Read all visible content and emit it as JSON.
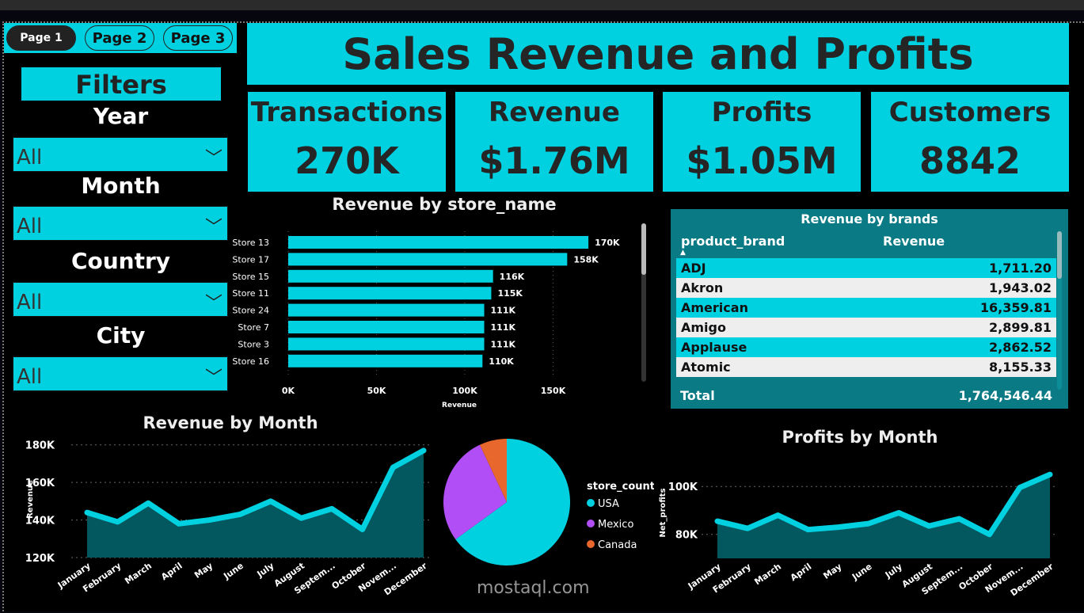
{
  "nav": {
    "pages": [
      "Page 1",
      "Page 2",
      "Page 3"
    ],
    "active": 0
  },
  "title": "Sales Revenue and Profits",
  "filters": {
    "heading": "Filters",
    "items": [
      {
        "label": "Year",
        "value": "All"
      },
      {
        "label": "Month",
        "value": "All"
      },
      {
        "label": "Country",
        "value": "All"
      },
      {
        "label": "City",
        "value": "All"
      }
    ]
  },
  "kpis": [
    {
      "label": "Transactions",
      "value": "270K"
    },
    {
      "label": "Revenue",
      "value": "$1.76M"
    },
    {
      "label": "Profits",
      "value": "$1.05M"
    },
    {
      "label": "Customers",
      "value": "8842"
    }
  ],
  "colors": {
    "accent": "#00d1e0",
    "area": "#02585e",
    "table": "#0a7a85"
  },
  "brands": {
    "title": "Revenue by brands",
    "columns": [
      "product_brand",
      "Revenue"
    ],
    "rows": [
      [
        "ADJ",
        "1,711.20"
      ],
      [
        "Akron",
        "1,943.02"
      ],
      [
        "American",
        "16,359.81"
      ],
      [
        "Amigo",
        "2,899.81"
      ],
      [
        "Applause",
        "2,862.52"
      ],
      [
        "Atomic",
        "8,155.33"
      ]
    ],
    "total_label": "Total",
    "total": "1,764,546.44"
  },
  "chart_data": [
    {
      "type": "bar",
      "title": "Revenue by store_name",
      "xlabel": "Revenue",
      "categories": [
        "Store 13",
        "Store 17",
        "Store 15",
        "Store 11",
        "Store 24",
        "Store 7",
        "Store 3",
        "Store 16"
      ],
      "values": [
        170,
        158,
        116,
        115,
        111,
        111,
        111,
        110
      ],
      "data_labels": [
        "170K",
        "158K",
        "116K",
        "115K",
        "111K",
        "111K",
        "111K",
        "110K"
      ],
      "xticks": [
        "0K",
        "50K",
        "100K",
        "150K"
      ],
      "xlim": [
        0,
        180
      ]
    },
    {
      "type": "area",
      "title": "Revenue by Month",
      "ylabel": "Revenue",
      "categories": [
        "January",
        "February",
        "March",
        "April",
        "May",
        "June",
        "July",
        "August",
        "Septem...",
        "October",
        "Novem...",
        "December"
      ],
      "values": [
        144,
        139,
        149,
        138,
        140,
        143,
        150,
        141,
        146,
        135,
        168,
        177
      ],
      "yticks": [
        "120K",
        "140K",
        "160K",
        "180K"
      ],
      "ylim": [
        120,
        182
      ]
    },
    {
      "type": "pie",
      "legend_title": "store_countr",
      "legend": "right",
      "slices": [
        {
          "name": "USA",
          "value": 65,
          "color": "#00d1e0"
        },
        {
          "name": "Mexico",
          "value": 28,
          "color": "#b14ef5"
        },
        {
          "name": "Canada",
          "value": 7,
          "color": "#e8672c"
        }
      ]
    },
    {
      "type": "area",
      "title": "Profits by Month",
      "ylabel": "Net_profits",
      "categories": [
        "January",
        "February",
        "March",
        "April",
        "May",
        "June",
        "July",
        "August",
        "Septem...",
        "October",
        "Novem...",
        "December"
      ],
      "values": [
        85.5,
        82.5,
        88,
        82,
        83,
        84.5,
        89,
        83.5,
        86.5,
        80,
        99.5,
        105
      ],
      "yticks": [
        "80K",
        "100K"
      ],
      "ylim": [
        70,
        108
      ]
    }
  ],
  "watermark": "mostaql.com"
}
